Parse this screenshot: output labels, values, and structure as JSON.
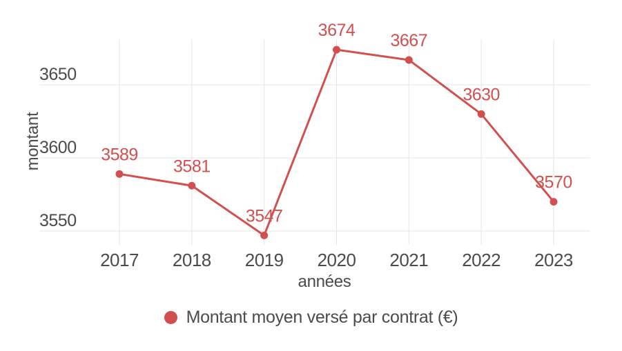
{
  "chart_data": {
    "type": "line",
    "title": "",
    "categories": [
      "2017",
      "2018",
      "2019",
      "2020",
      "2021",
      "2022",
      "2023"
    ],
    "series": [
      {
        "name": "Montant moyen versé par contrat (€)",
        "values": [
          3589,
          3581,
          3547,
          3674,
          3667,
          3630,
          3570
        ]
      }
    ],
    "xlabel": "années",
    "ylabel": "montant",
    "yticks": [
      3550,
      3600,
      3650
    ],
    "ylim": [
      3541,
      3681
    ],
    "grid": true,
    "legend_position": "bottom",
    "colors": {
      "series": "#d1504f",
      "data_labels": "#d1504f",
      "axis_text": "#4b4b4b",
      "grid": "#e4e4e4",
      "background": "#ffffff"
    }
  }
}
